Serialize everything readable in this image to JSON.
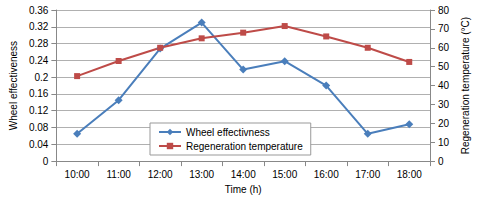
{
  "chart_data": {
    "type": "line",
    "x_label": "Time (h)",
    "y_label": "Wheel effectiveness",
    "y2_label": "Regeneration temperature (°C)",
    "categories": [
      "10:00",
      "11:00",
      "12:00",
      "13:00",
      "14:00",
      "15:00",
      "16:00",
      "17:00",
      "18:00"
    ],
    "series": [
      {
        "name": "Wheel effectivness",
        "color": "#4a7ebb",
        "marker": "diamond",
        "values": [
          0.065,
          0.145,
          0.268,
          0.33,
          0.218,
          0.238,
          0.18,
          0.065,
          0.088
        ]
      },
      {
        "name": "Regeneration temperature",
        "color": "#be4b48",
        "marker": "square",
        "axis": "y2",
        "values": [
          45,
          53,
          60,
          65,
          68,
          71.5,
          66,
          60,
          52.5
        ]
      }
    ],
    "ylim": [
      0,
      0.36
    ],
    "yticks": [
      0,
      0.04,
      0.08,
      0.12,
      0.16,
      0.2,
      0.24,
      0.28,
      0.32,
      0.36
    ],
    "y2lim": [
      0,
      80
    ],
    "y2ticks": [
      0,
      10,
      20,
      30,
      40,
      50,
      60,
      70,
      80
    ],
    "grid": true,
    "legend": "bottom"
  }
}
